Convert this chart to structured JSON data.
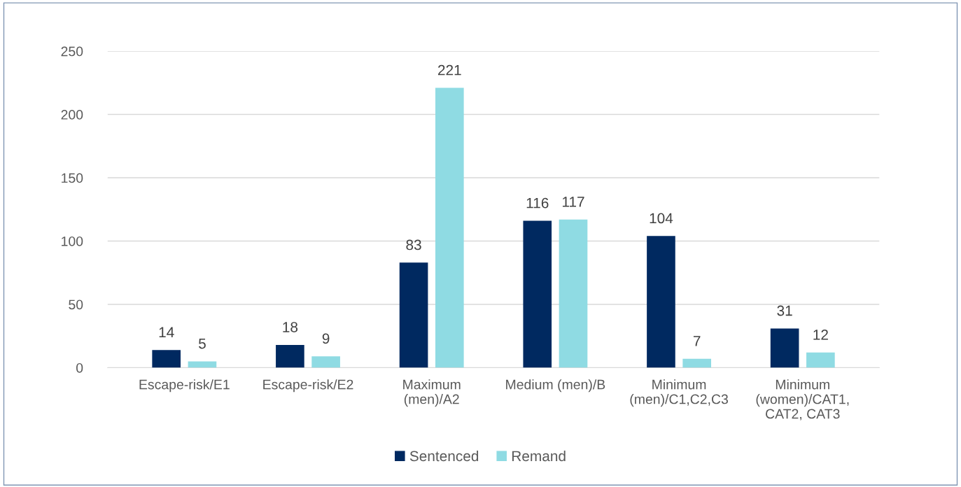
{
  "chart_data": {
    "type": "bar",
    "categories": [
      "Escape-risk/E1",
      "Escape-risk/E2",
      "Maximum\n(men)/A2",
      "Medium (men)/B",
      "Minimum\n(men)/C1,C2,C3",
      "Minimum\n(women)/CAT1,\nCAT2, CAT3"
    ],
    "series": [
      {
        "name": "Sentenced",
        "color": "#002960",
        "values": [
          14,
          18,
          83,
          116,
          104,
          31
        ]
      },
      {
        "name": "Remand",
        "color": "#8fdbe3",
        "values": [
          5,
          9,
          221,
          117,
          7,
          12
        ]
      }
    ],
    "ylim": [
      0,
      250
    ],
    "yticks": [
      0,
      50,
      100,
      150,
      200,
      250
    ],
    "grid": "y",
    "legend": "bottom",
    "data_labels": true
  }
}
